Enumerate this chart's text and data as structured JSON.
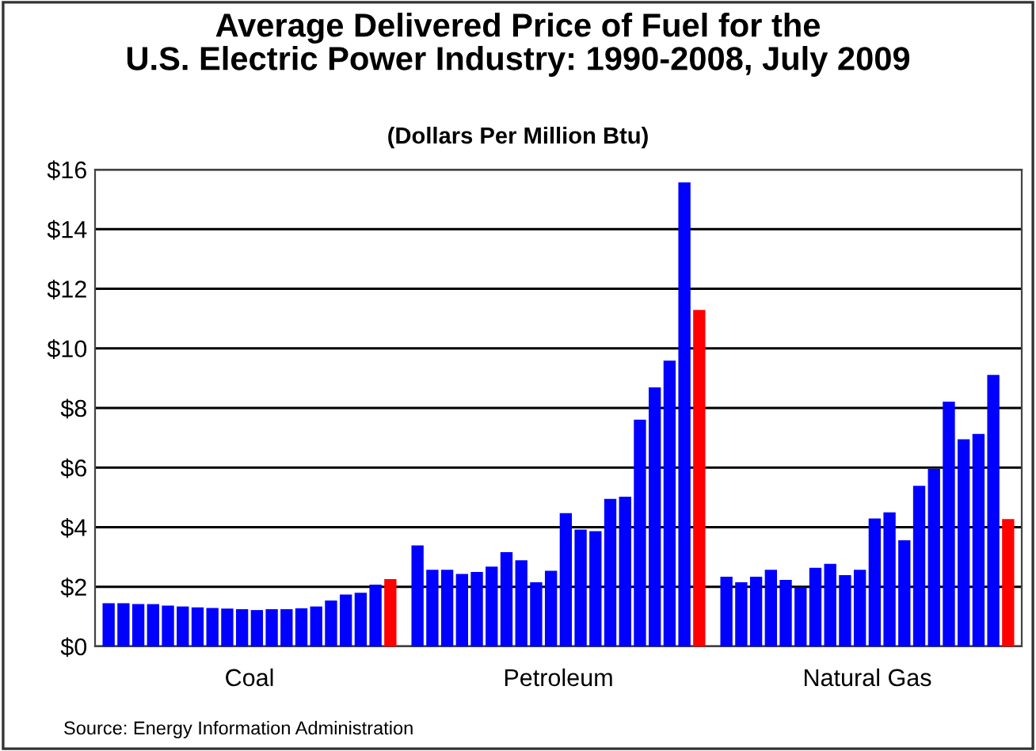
{
  "chart_data": {
    "type": "bar",
    "title": "Average Delivered Price of Fuel for the\nU.S. Electric Power Industry: 1990-2008, July 2009",
    "subtitle": "(Dollars Per Million Btu)",
    "categories": [
      "Coal",
      "Petroleum",
      "Natural Gas"
    ],
    "series": [
      {
        "color": "#0000ff",
        "values": [
          1.45,
          3.39,
          2.34
        ]
      },
      {
        "color": "#0000ff",
        "values": [
          1.45,
          2.57,
          2.15
        ]
      },
      {
        "color": "#0000ff",
        "values": [
          1.42,
          2.57,
          2.34
        ]
      },
      {
        "color": "#0000ff",
        "values": [
          1.42,
          2.43,
          2.57
        ]
      },
      {
        "color": "#0000ff",
        "values": [
          1.37,
          2.5,
          2.23
        ]
      },
      {
        "color": "#0000ff",
        "values": [
          1.34,
          2.68,
          1.99
        ]
      },
      {
        "color": "#0000ff",
        "values": [
          1.31,
          3.16,
          2.64
        ]
      },
      {
        "color": "#0000ff",
        "values": [
          1.29,
          2.89,
          2.77
        ]
      },
      {
        "color": "#0000ff",
        "values": [
          1.27,
          2.15,
          2.39
        ]
      },
      {
        "color": "#0000ff",
        "values": [
          1.25,
          2.54,
          2.57
        ]
      },
      {
        "color": "#0000ff",
        "values": [
          1.22,
          4.47,
          4.29
        ]
      },
      {
        "color": "#0000ff",
        "values": [
          1.25,
          3.92,
          4.5
        ]
      },
      {
        "color": "#0000ff",
        "values": [
          1.25,
          3.87,
          3.56
        ]
      },
      {
        "color": "#0000ff",
        "values": [
          1.28,
          4.95,
          5.39
        ]
      },
      {
        "color": "#0000ff",
        "values": [
          1.34,
          5.02,
          5.96
        ]
      },
      {
        "color": "#0000ff",
        "values": [
          1.54,
          7.61,
          8.21
        ]
      },
      {
        "color": "#0000ff",
        "values": [
          1.74,
          8.69,
          6.95
        ]
      },
      {
        "color": "#0000ff",
        "values": [
          1.8,
          9.59,
          7.13
        ]
      },
      {
        "color": "#0000ff",
        "values": [
          2.07,
          15.57,
          9.11
        ]
      },
      {
        "color": "#ff0000",
        "values": [
          2.26,
          11.29,
          4.27
        ]
      }
    ],
    "ylim": [
      0,
      16
    ],
    "yticks": [
      {
        "value": 0,
        "label": "$0"
      },
      {
        "value": 2,
        "label": "$2"
      },
      {
        "value": 4,
        "label": "$4"
      },
      {
        "value": 6,
        "label": "$6"
      },
      {
        "value": 8,
        "label": "$8"
      },
      {
        "value": 10,
        "label": "$10"
      },
      {
        "value": 12,
        "label": "$12"
      },
      {
        "value": 14,
        "label": "$14"
      },
      {
        "value": 16,
        "label": "$16"
      }
    ],
    "grid": "y",
    "legend": false,
    "annotations": [
      "Source: Energy Information Administration"
    ]
  }
}
